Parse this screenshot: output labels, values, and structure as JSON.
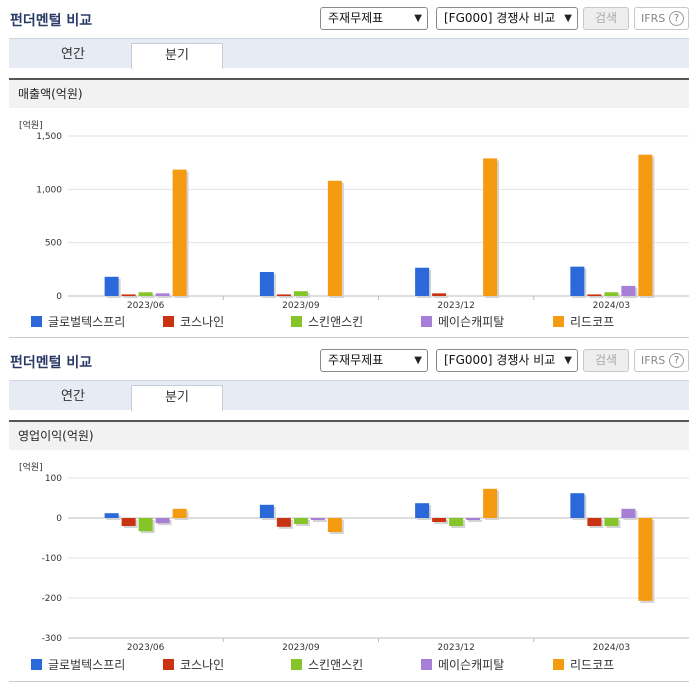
{
  "common": {
    "title": "펀더멘털 비교",
    "statement_select": "주재무제표",
    "peer_select": "[FG000] 경쟁사 비교",
    "search_label": "검색",
    "ifrs_label": "IFRS",
    "help_glyph": "?",
    "tabs": [
      "연간",
      "분기"
    ],
    "active_tab": "분기"
  },
  "colors": {
    "글로벌텍스프리": "#2b68d9",
    "코스나인": "#c93312",
    "스킨앤스킨": "#86c52a",
    "메이슨캐피탈": "#a77fd6",
    "리드코프": "#f59b12"
  },
  "chart_data": [
    {
      "type": "bar",
      "title": "매출액(억원)",
      "unit_label": "[억원]",
      "categories": [
        "2023/06",
        "2023/09",
        "2023/12",
        "2024/03"
      ],
      "ylim": [
        0,
        1500
      ],
      "yticks": [
        0,
        500,
        1000,
        1500
      ],
      "ytick_labels": [
        "0",
        "500",
        "1,000",
        "1,500"
      ],
      "grid": true,
      "legend": "bottom",
      "series": [
        {
          "name": "글로벌텍스프리",
          "values": [
            180,
            225,
            265,
            275
          ]
        },
        {
          "name": "코스나인",
          "values": [
            15,
            15,
            25,
            15
          ]
        },
        {
          "name": "스킨앤스킨",
          "values": [
            35,
            45,
            0,
            35
          ]
        },
        {
          "name": "메이슨캐피탈",
          "values": [
            25,
            0,
            0,
            95
          ]
        },
        {
          "name": "리드코프",
          "values": [
            1185,
            1080,
            1290,
            1325
          ]
        }
      ]
    },
    {
      "type": "bar",
      "title": "영업이익(억원)",
      "unit_label": "[억원]",
      "categories": [
        "2023/06",
        "2023/09",
        "2023/12",
        "2024/03"
      ],
      "ylim": [
        -300,
        100
      ],
      "yticks": [
        -300,
        -200,
        -100,
        0,
        100
      ],
      "ytick_labels": [
        "-300",
        "-200",
        "-100",
        "0",
        "100"
      ],
      "grid": true,
      "legend": "bottom",
      "series": [
        {
          "name": "글로벌텍스프리",
          "values": [
            12,
            33,
            37,
            62
          ]
        },
        {
          "name": "코스나인",
          "values": [
            -20,
            -22,
            -10,
            -20
          ]
        },
        {
          "name": "스킨앤스킨",
          "values": [
            -33,
            -15,
            -20,
            -20
          ]
        },
        {
          "name": "메이슨캐피탈",
          "values": [
            -13,
            -5,
            -5,
            23
          ]
        },
        {
          "name": "리드코프",
          "values": [
            23,
            -35,
            73,
            -207
          ]
        }
      ]
    }
  ]
}
